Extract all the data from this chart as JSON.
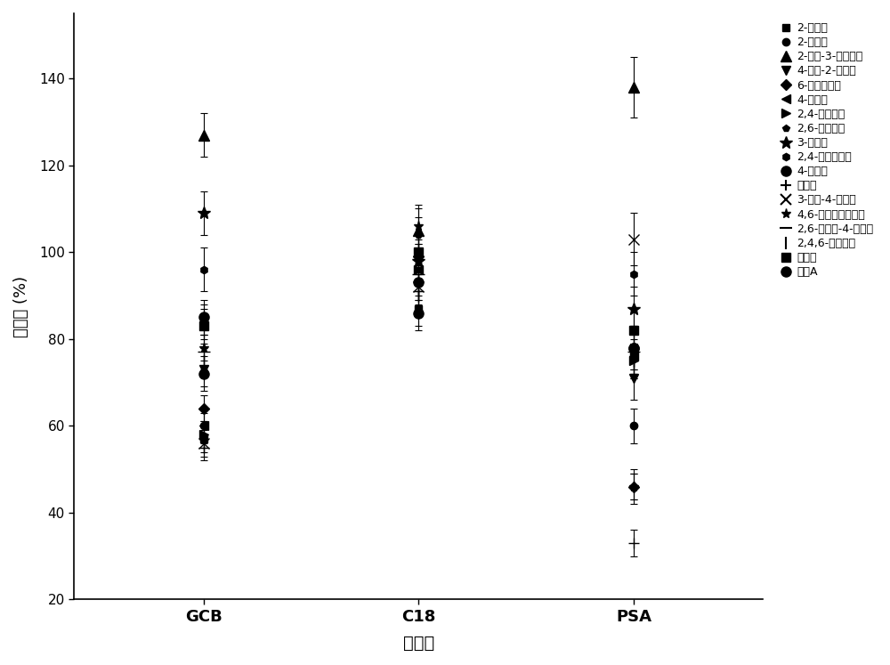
{
  "title": "",
  "xlabel": "净化剂",
  "ylabel": "回收率 (%)",
  "xlim": [
    0.4,
    3.6
  ],
  "ylim": [
    20,
    155
  ],
  "yticks": [
    20,
    40,
    60,
    80,
    100,
    120,
    140
  ],
  "xtick_labels": [
    "GCB",
    "C18",
    "PSA"
  ],
  "xtick_positions": [
    1,
    2,
    3
  ],
  "background": "#ffffff",
  "compounds": [
    {
      "name": "2-溯苯酚",
      "marker": "s",
      "ms": 6
    },
    {
      "name": "2-硒基酚",
      "marker": "o",
      "ms": 6
    },
    {
      "name": "2-硒基-3-甲基苯酚",
      "marker": "^",
      "ms": 8
    },
    {
      "name": "4-甲基-2-硒基酚",
      "marker": "v",
      "ms": 7
    },
    {
      "name": "6-硒基间甲酚",
      "marker": "D",
      "ms": 6
    },
    {
      "name": "4-溯苯酚",
      "marker": "<",
      "ms": 7
    },
    {
      "name": "2,4-二溯苯酚",
      "marker": ">",
      "ms": 7
    },
    {
      "name": "2,6-二溯苯酚",
      "marker": "p",
      "ms": 6
    },
    {
      "name": "3-硒基酚",
      "marker": "*",
      "ms": 10
    },
    {
      "name": "2,4-二硒基苯酚",
      "marker": "h",
      "ms": 6
    },
    {
      "name": "4-硒基酚",
      "marker": "o",
      "ms": 8
    },
    {
      "name": "辛基酚",
      "marker": "+",
      "ms": 9
    },
    {
      "name": "3-甲基-4-硒基酚",
      "marker": "x",
      "ms": 8
    },
    {
      "name": "4,6-二硒基邻甲苯酚",
      "marker": "*",
      "ms": 8
    },
    {
      "name": "2,6-二甲基-4-硒基酚",
      "marker": "_",
      "ms": 10
    },
    {
      "name": "2,4,6-三溯苯酚",
      "marker": "|",
      "ms": 10
    },
    {
      "name": "王基酚",
      "marker": "s",
      "ms": 7
    },
    {
      "name": "双酚A",
      "marker": "o",
      "ms": 8
    }
  ],
  "data": {
    "GCB": {
      "values": [
        57,
        60,
        127,
        73,
        64,
        60,
        58,
        84,
        109,
        96,
        85,
        55,
        56,
        78,
        77,
        75,
        83,
        72
      ],
      "errors": [
        3,
        4,
        5,
        4,
        3,
        3,
        3,
        4,
        5,
        5,
        4,
        3,
        3,
        3,
        4,
        3,
        4,
        4
      ]
    },
    "C18": {
      "values": [
        87,
        93,
        105,
        98,
        99,
        96,
        96,
        104,
        98,
        100,
        93,
        91,
        92,
        106,
        95,
        90,
        100,
        86
      ],
      "errors": [
        4,
        4,
        5,
        4,
        4,
        3,
        3,
        4,
        4,
        4,
        4,
        4,
        4,
        5,
        4,
        4,
        4,
        4
      ]
    },
    "PSA": {
      "values": [
        77,
        60,
        138,
        71,
        46,
        76,
        75,
        46,
        87,
        95,
        78,
        33,
        103,
        46,
        77,
        75,
        82,
        78
      ],
      "errors": [
        5,
        4,
        7,
        5,
        3,
        4,
        4,
        4,
        5,
        5,
        5,
        3,
        6,
        3,
        5,
        4,
        5,
        5
      ]
    }
  }
}
